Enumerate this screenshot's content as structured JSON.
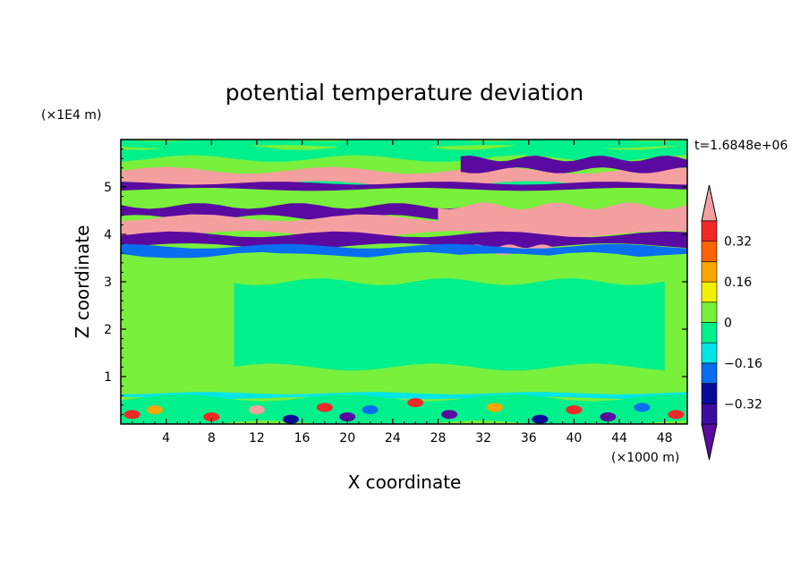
{
  "chart_data": {
    "type": "heatmap",
    "title": "potential temperature deviation",
    "xlabel": "X coordinate",
    "ylabel": "Z coordinate",
    "x_unit": "(×1000 m)",
    "y_unit": "(×1E4 m)",
    "time_label": "t=1.6848e+06",
    "xlim": [
      0,
      50
    ],
    "ylim": [
      0,
      6
    ],
    "x_ticks": [
      4,
      8,
      12,
      16,
      20,
      24,
      28,
      32,
      36,
      40,
      44,
      48
    ],
    "y_ticks": [
      1,
      2,
      3,
      4,
      5
    ],
    "grid": false,
    "colorbar": {
      "labels": [
        "0.32",
        "0.16",
        "0",
        "−0.16",
        "−0.32"
      ],
      "label_values": [
        0.32,
        0.16,
        0,
        -0.16,
        -0.32
      ],
      "levels": [
        -0.4,
        -0.32,
        -0.24,
        -0.16,
        -0.08,
        0,
        0.08,
        0.16,
        0.24,
        0.32,
        0.4
      ],
      "colors": [
        "#5a0aa0",
        "#3a0fa0",
        "#0a0a9a",
        "#0a6ef0",
        "#00e6e6",
        "#00f08c",
        "#78f03c",
        "#f0f000",
        "#ffa500",
        "#ff6400",
        "#f02828",
        "#f5a0a0"
      ],
      "extend": "both"
    },
    "bands": [
      {
        "z0": 5.85,
        "z1": 6.0,
        "color": "#00f08c"
      },
      {
        "z0": 5.0,
        "z1": 5.85,
        "color": "#00f08c"
      },
      {
        "z0": 5.2,
        "z1": 5.6,
        "color": "#78f03c"
      },
      {
        "z0": 5.05,
        "z1": 5.35,
        "color": "#f5a0a0"
      },
      {
        "z0": 5.35,
        "z1": 5.6,
        "color": "#5a0aa0",
        "x0": 30,
        "x1": 50
      },
      {
        "z0": 4.95,
        "z1": 5.08,
        "color": "#5a0aa0"
      },
      {
        "z0": 4.35,
        "z1": 4.6,
        "color": "#5a0aa0",
        "x0": 0,
        "x1": 30
      },
      {
        "z0": 4.15,
        "z1": 4.6,
        "color": "#f5a0a0",
        "x0": 28,
        "x1": 50
      },
      {
        "z0": 4.0,
        "z1": 4.35,
        "color": "#f5a0a0"
      },
      {
        "z0": 3.75,
        "z1": 4.0,
        "color": "#5a0aa0"
      },
      {
        "z0": 3.6,
        "z1": 3.75,
        "color": "#f5a0a0",
        "x0": 28,
        "x1": 38
      },
      {
        "z0": 3.55,
        "z1": 3.75,
        "color": "#0a6ef0"
      },
      {
        "z0": 0.6,
        "z1": 3.55,
        "color": "#78f03c"
      },
      {
        "z0": 1.2,
        "z1": 3.0,
        "color": "#00f08c",
        "x0": 10,
        "x1": 48
      },
      {
        "z0": 0.55,
        "z1": 0.65,
        "color": "#00e6e6"
      },
      {
        "z0": 0.0,
        "z1": 0.55,
        "color": "#00f08c"
      }
    ],
    "blobs": [
      {
        "x": 1,
        "z": 0.2,
        "color": "#f02828"
      },
      {
        "x": 3,
        "z": 0.3,
        "color": "#ffa500"
      },
      {
        "x": 8,
        "z": 0.15,
        "color": "#f02828"
      },
      {
        "x": 12,
        "z": 0.3,
        "color": "#f5a0a0"
      },
      {
        "x": 15,
        "z": 0.1,
        "color": "#0a0a9a"
      },
      {
        "x": 18,
        "z": 0.35,
        "color": "#f02828"
      },
      {
        "x": 20,
        "z": 0.15,
        "color": "#5a0aa0"
      },
      {
        "x": 22,
        "z": 0.3,
        "color": "#0a6ef0"
      },
      {
        "x": 26,
        "z": 0.45,
        "color": "#f02828"
      },
      {
        "x": 29,
        "z": 0.2,
        "color": "#5a0aa0"
      },
      {
        "x": 33,
        "z": 0.35,
        "color": "#ffa500"
      },
      {
        "x": 37,
        "z": 0.1,
        "color": "#0a0a9a"
      },
      {
        "x": 40,
        "z": 0.3,
        "color": "#f02828"
      },
      {
        "x": 43,
        "z": 0.15,
        "color": "#5a0aa0"
      },
      {
        "x": 46,
        "z": 0.35,
        "color": "#0a6ef0"
      },
      {
        "x": 49,
        "z": 0.2,
        "color": "#f02828"
      }
    ]
  }
}
